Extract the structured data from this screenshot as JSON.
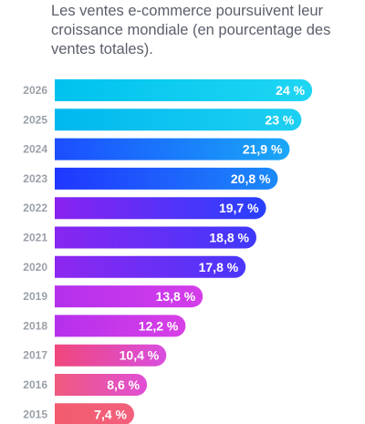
{
  "title": "Les ventes e-commerce poursuivent leur croissance mondiale (en pourcentage des ventes totales).",
  "chart_data": {
    "type": "bar",
    "orientation": "horizontal",
    "title": "Les ventes e-commerce poursuivent leur croissance mondiale (en pourcentage des ventes totales).",
    "xlabel": "",
    "ylabel": "",
    "xlim": [
      0,
      26.8
    ],
    "grid": false,
    "categories": [
      "2026",
      "2025",
      "2024",
      "2023",
      "2022",
      "2021",
      "2020",
      "2019",
      "2018",
      "2017",
      "2016",
      "2015"
    ],
    "values": [
      24,
      23,
      21.9,
      20.8,
      19.7,
      18.8,
      17.8,
      13.8,
      12.2,
      10.4,
      8.6,
      7.4
    ],
    "labels": [
      "24 %",
      "23 %",
      "21,9 %",
      "20,8 %",
      "19,7 %",
      "18,8 %",
      "17,8 %",
      "13,8 %",
      "12,2 %",
      "10,4 %",
      "8,6 %",
      "7,4 %"
    ],
    "colors": [
      [
        "#00c2ee",
        "#1fd6f2"
      ],
      [
        "#00b8ee",
        "#1dd0f2"
      ],
      [
        "#1b4dff",
        "#1aa8f7"
      ],
      [
        "#2036ff",
        "#1b8af8"
      ],
      [
        "#8a22f0",
        "#2740ff"
      ],
      [
        "#8826f0",
        "#3f38fb"
      ],
      [
        "#8e27f0",
        "#4a36fa"
      ],
      [
        "#b430ec",
        "#d53eea"
      ],
      [
        "#b530ec",
        "#d840e6"
      ],
      [
        "#f0477c",
        "#d84ee0"
      ],
      [
        "#f05a7e",
        "#e04ed6"
      ],
      [
        "#f25c6e",
        "#f3607c"
      ]
    ]
  }
}
